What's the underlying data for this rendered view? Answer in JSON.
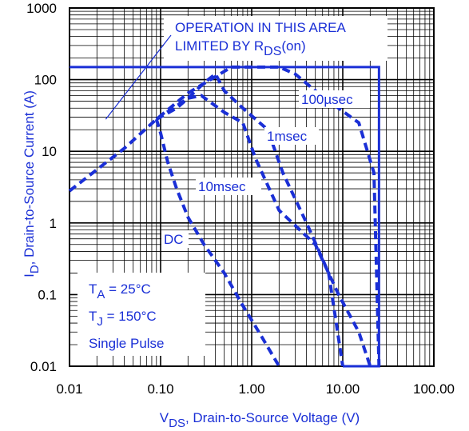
{
  "chart_data": {
    "type": "line",
    "title": "",
    "x_scale": "log",
    "y_scale": "log",
    "xlim": [
      0.01,
      100
    ],
    "ylim": [
      0.01,
      1000
    ],
    "x_tick_labels": [
      "0.01",
      "0.10",
      "1.00",
      "10.00",
      "100.00"
    ],
    "x_tick_values": [
      0.01,
      0.1,
      1,
      10,
      100
    ],
    "y_tick_labels": [
      "0.01",
      "0.1",
      "1",
      "10",
      "100",
      "1000"
    ],
    "y_tick_values": [
      0.01,
      0.1,
      1,
      10,
      100,
      1000
    ],
    "xlabel": {
      "main": "V",
      "sub": "DS",
      "rest": ", Drain-to-Source Voltage (V)"
    },
    "ylabel": {
      "main": "I",
      "sub": "D",
      "rest": ",  Drain-to-Source Current (A)"
    },
    "grid": true,
    "colors": {
      "curve": "#1a2fd6",
      "grid": "#000000",
      "text": "#000000",
      "label": "#1a2fd6"
    },
    "limit_line": {
      "label_lines": [
        "OPERATION IN THIS AREA",
        "LIMITED BY R"
      ],
      "label_sub": "DS",
      "label_tail": "(on)",
      "pointer_target": [
        0.025,
        28
      ]
    },
    "boundary": {
      "style": "solid",
      "points": [
        [
          0.01,
          150
        ],
        [
          25,
          150
        ],
        [
          25,
          0.01
        ],
        [
          10,
          0.01
        ],
        [
          10,
          0.01
        ]
      ]
    },
    "series": [
      {
        "name": "100µsec",
        "style": "dashed",
        "points": [
          [
            0.01,
            2.8
          ],
          [
            0.04,
            11
          ],
          [
            0.09,
            28
          ],
          [
            0.2,
            65
          ],
          [
            0.4,
            110
          ],
          [
            0.6,
            150
          ],
          [
            2.0,
            150
          ],
          [
            3.0,
            120
          ],
          [
            5.0,
            70
          ],
          [
            9.0,
            40
          ],
          [
            15.0,
            25
          ],
          [
            22.0,
            5.0
          ],
          [
            25.0,
            0.01
          ]
        ]
      },
      {
        "name": "1msec",
        "style": "dashed",
        "points": [
          [
            0.09,
            28
          ],
          [
            0.2,
            55
          ],
          [
            0.3,
            90
          ],
          [
            0.4,
            120
          ],
          [
            0.5,
            70
          ],
          [
            0.8,
            40
          ],
          [
            1.5,
            20
          ],
          [
            2.2,
            5.0
          ],
          [
            4.0,
            1.0
          ],
          [
            7.0,
            0.2
          ],
          [
            10.0,
            0.01
          ]
        ]
      },
      {
        "name": "10msec",
        "style": "dashed",
        "points": [
          [
            0.09,
            28
          ],
          [
            0.15,
            40
          ],
          [
            0.2,
            55
          ],
          [
            0.28,
            60
          ],
          [
            0.5,
            35
          ],
          [
            0.8,
            25
          ],
          [
            1.1,
            8.0
          ],
          [
            1.3,
            5.0
          ],
          [
            2.0,
            1.5
          ],
          [
            5.0,
            0.5
          ],
          [
            9.0,
            0.1
          ],
          [
            15.0,
            0.03
          ],
          [
            20.0,
            0.01
          ]
        ]
      },
      {
        "name": "DC",
        "style": "dashed",
        "points": [
          [
            0.09,
            28
          ],
          [
            0.1,
            18
          ],
          [
            0.12,
            7.0
          ],
          [
            0.15,
            3.0
          ],
          [
            0.2,
            1.2
          ],
          [
            0.3,
            0.5
          ],
          [
            0.5,
            0.2
          ],
          [
            0.8,
            0.07
          ],
          [
            1.2,
            0.03
          ],
          [
            2.0,
            0.01
          ]
        ]
      }
    ],
    "annotations": {
      "labels": [
        "100µsec",
        "1msec",
        "10msec",
        "DC"
      ],
      "box_lines": [
        {
          "main": "T",
          "sub": "A",
          "rest": " = 25°C"
        },
        {
          "main": "T",
          "sub": "J",
          "rest": " = 150°C"
        },
        {
          "main": "Single Pulse",
          "sub": "",
          "rest": ""
        }
      ]
    }
  }
}
